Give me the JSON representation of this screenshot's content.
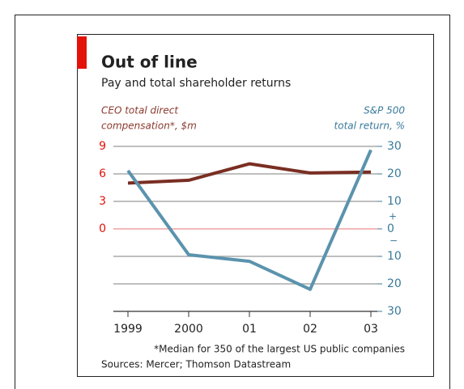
{
  "chart_data": {
    "type": "line",
    "title": "Out of line",
    "subtitle": "Pay and total shareholder returns",
    "y_label": [
      "CEO total direct",
      "compensation*, $m"
    ],
    "y2_label": [
      "S&P 500",
      "total return, %"
    ],
    "y2_sign_labels": [
      "+",
      "−"
    ],
    "categories": [
      "1999",
      "2000",
      "01",
      "02",
      "03"
    ],
    "series": [
      {
        "name": "CEO total direct compensation",
        "color": "#7a2e22",
        "values": [
          5.0,
          5.3,
          7.1,
          6.1,
          6.2
        ]
      },
      {
        "name": "S&P 500 total return",
        "color": "#5b93ad",
        "axis": "y2",
        "values": [
          21.2,
          -9.4,
          -11.8,
          -22,
          28.7
        ]
      }
    ],
    "ylim": [
      -9,
      9
    ],
    "yticks": [
      0,
      3,
      6,
      9
    ],
    "y2lim": [
      -30,
      30
    ],
    "y2ticks": [
      30,
      20,
      10,
      0,
      {
        "value": -10,
        "label": "10"
      },
      {
        "value": -20,
        "label": "20"
      },
      {
        "value": -30,
        "label": "30"
      }
    ],
    "grid": true,
    "footnote": "*Median for 350 of the largest US public companies",
    "source": "Sources: Mercer; Thomson Datastream"
  }
}
